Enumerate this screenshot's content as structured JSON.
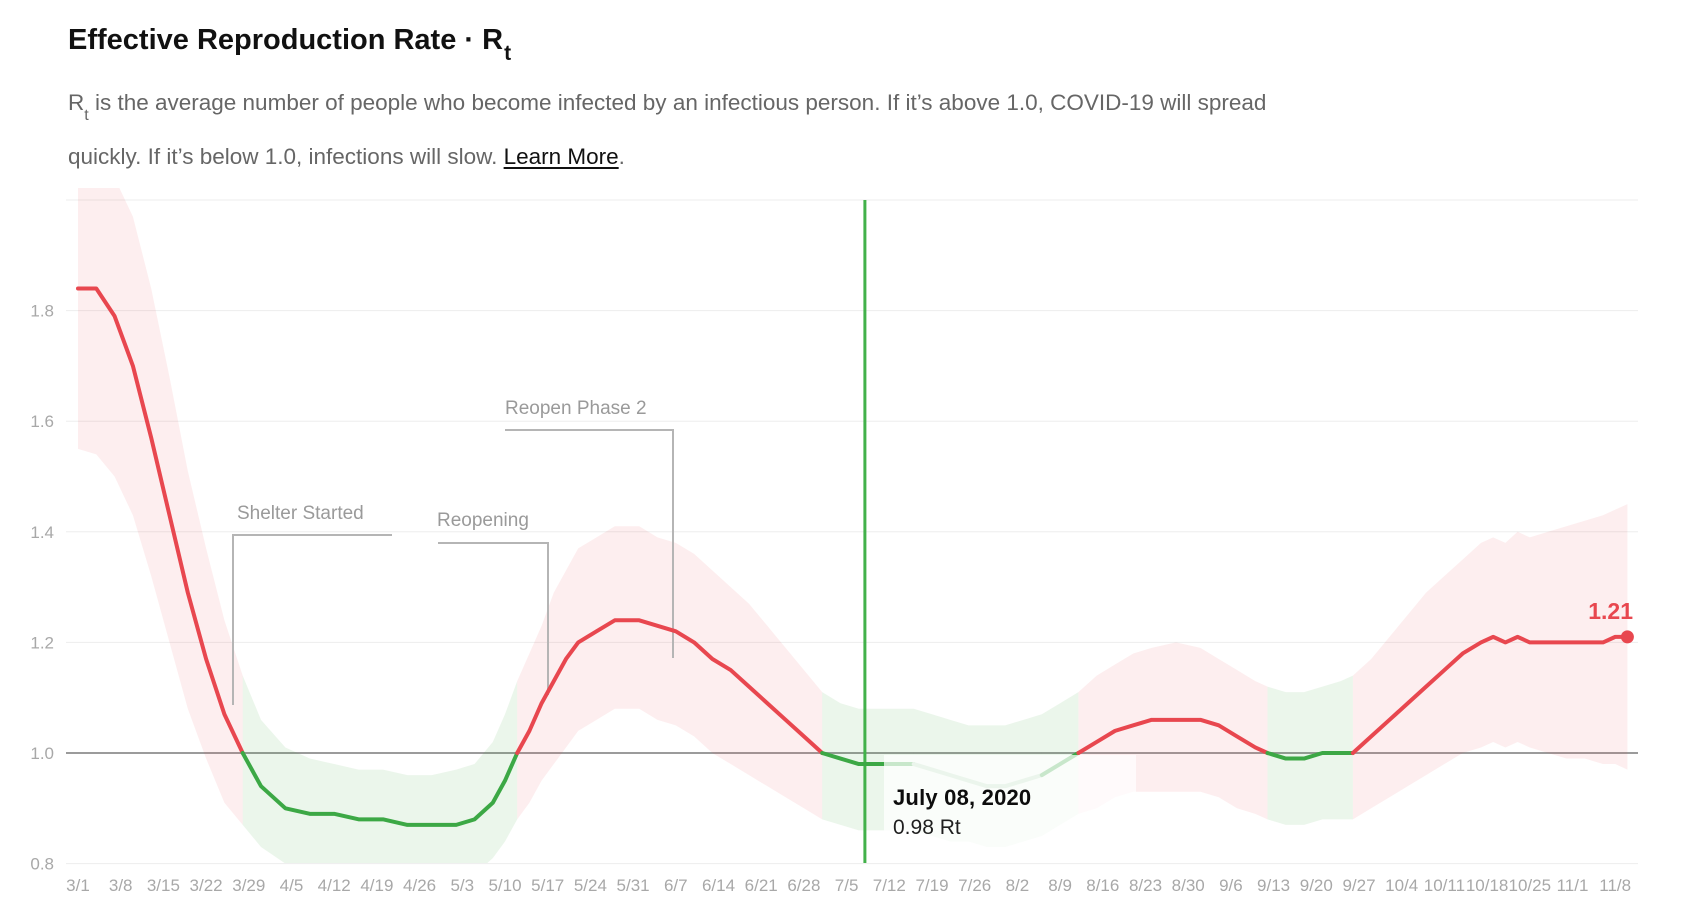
{
  "header": {
    "title_main": "Effective Reproduction Rate · R",
    "title_sub": "t",
    "subtitle_r": "R",
    "subtitle_r_sub": "t",
    "subtitle_line1": " is the average number of people who become infected by an infectious person. If it’s above 1.0, COVID-19 will spread",
    "subtitle_line2": "quickly. If it’s below 1.0, infections will slow. ",
    "learn_more": "Learn More",
    "subtitle_period": "."
  },
  "chart_data": {
    "type": "line",
    "title": "Effective Reproduction Rate · Rt",
    "ylabel": "Rt",
    "ylim": [
      0.8,
      2.02
    ],
    "baseline": 1.0,
    "grid": "horizontal",
    "y_ticks": [
      "0.8",
      "1.0",
      "1.2",
      "1.4",
      "1.6",
      "1.8"
    ],
    "y_tick_values": [
      0.8,
      1.0,
      1.2,
      1.4,
      1.6,
      1.8
    ],
    "x_tick_labels": [
      "3/1",
      "3/8",
      "3/15",
      "3/22",
      "3/29",
      "4/5",
      "4/12",
      "4/19",
      "4/26",
      "5/3",
      "5/10",
      "5/17",
      "5/24",
      "5/31",
      "6/7",
      "6/14",
      "6/21",
      "6/28",
      "7/5",
      "7/12",
      "7/19",
      "7/26",
      "8/2",
      "8/9",
      "8/16",
      "8/23",
      "8/30",
      "9/6",
      "9/13",
      "9/20",
      "9/27",
      "10/4",
      "10/11",
      "10/18",
      "10/25",
      "11/1",
      "11/8"
    ],
    "points_schema": [
      "day_offset_from_3/1",
      "rt",
      "ci_low",
      "ci_high"
    ],
    "points": [
      [
        0,
        1.84,
        1.55,
        2.06
      ],
      [
        3,
        1.84,
        1.54,
        2.06
      ],
      [
        6,
        1.79,
        1.5,
        2.04
      ],
      [
        9,
        1.7,
        1.43,
        1.97
      ],
      [
        12,
        1.57,
        1.32,
        1.84
      ],
      [
        15,
        1.43,
        1.2,
        1.68
      ],
      [
        18,
        1.29,
        1.08,
        1.51
      ],
      [
        21,
        1.17,
        0.99,
        1.37
      ],
      [
        24,
        1.07,
        0.91,
        1.24
      ],
      [
        27,
        1.0,
        0.87,
        1.14
      ],
      [
        30,
        0.94,
        0.83,
        1.06
      ],
      [
        34,
        0.9,
        0.8,
        1.01
      ],
      [
        38,
        0.89,
        0.79,
        0.99
      ],
      [
        42,
        0.89,
        0.78,
        0.98
      ],
      [
        46,
        0.88,
        0.78,
        0.97
      ],
      [
        50,
        0.88,
        0.77,
        0.97
      ],
      [
        54,
        0.87,
        0.77,
        0.96
      ],
      [
        58,
        0.87,
        0.77,
        0.96
      ],
      [
        62,
        0.87,
        0.77,
        0.97
      ],
      [
        65,
        0.88,
        0.78,
        0.98
      ],
      [
        68,
        0.91,
        0.81,
        1.02
      ],
      [
        70,
        0.95,
        0.84,
        1.07
      ],
      [
        72,
        1.0,
        0.88,
        1.13
      ],
      [
        74,
        1.04,
        0.91,
        1.18
      ],
      [
        76,
        1.09,
        0.95,
        1.23
      ],
      [
        78,
        1.13,
        0.98,
        1.29
      ],
      [
        80,
        1.17,
        1.01,
        1.33
      ],
      [
        82,
        1.2,
        1.04,
        1.37
      ],
      [
        85,
        1.22,
        1.06,
        1.39
      ],
      [
        88,
        1.24,
        1.08,
        1.41
      ],
      [
        92,
        1.24,
        1.08,
        1.41
      ],
      [
        95,
        1.23,
        1.06,
        1.39
      ],
      [
        98,
        1.22,
        1.05,
        1.38
      ],
      [
        101,
        1.2,
        1.03,
        1.36
      ],
      [
        104,
        1.17,
        1.0,
        1.33
      ],
      [
        107,
        1.15,
        0.98,
        1.3
      ],
      [
        110,
        1.12,
        0.96,
        1.27
      ],
      [
        113,
        1.09,
        0.94,
        1.23
      ],
      [
        116,
        1.06,
        0.92,
        1.19
      ],
      [
        119,
        1.03,
        0.9,
        1.15
      ],
      [
        122,
        1.0,
        0.88,
        1.11
      ],
      [
        125,
        0.99,
        0.87,
        1.09
      ],
      [
        128,
        0.98,
        0.86,
        1.08
      ],
      [
        131,
        0.98,
        0.86,
        1.08
      ],
      [
        134,
        0.98,
        0.86,
        1.08
      ],
      [
        137,
        0.98,
        0.86,
        1.08
      ],
      [
        140,
        0.97,
        0.85,
        1.07
      ],
      [
        143,
        0.96,
        0.84,
        1.06
      ],
      [
        146,
        0.95,
        0.84,
        1.05
      ],
      [
        149,
        0.94,
        0.83,
        1.05
      ],
      [
        152,
        0.94,
        0.83,
        1.05
      ],
      [
        155,
        0.95,
        0.84,
        1.06
      ],
      [
        158,
        0.96,
        0.85,
        1.07
      ],
      [
        161,
        0.98,
        0.87,
        1.09
      ],
      [
        164,
        1.0,
        0.89,
        1.11
      ],
      [
        167,
        1.02,
        0.9,
        1.14
      ],
      [
        170,
        1.04,
        0.92,
        1.16
      ],
      [
        173,
        1.05,
        0.93,
        1.18
      ],
      [
        176,
        1.06,
        0.93,
        1.19
      ],
      [
        180,
        1.06,
        0.93,
        1.2
      ],
      [
        184,
        1.06,
        0.93,
        1.19
      ],
      [
        187,
        1.05,
        0.92,
        1.17
      ],
      [
        190,
        1.03,
        0.9,
        1.15
      ],
      [
        193,
        1.01,
        0.89,
        1.13
      ],
      [
        195,
        1.0,
        0.88,
        1.12
      ],
      [
        198,
        0.99,
        0.87,
        1.11
      ],
      [
        201,
        0.99,
        0.87,
        1.11
      ],
      [
        204,
        1.0,
        0.88,
        1.12
      ],
      [
        207,
        1.0,
        0.88,
        1.13
      ],
      [
        209,
        1.0,
        0.88,
        1.14
      ],
      [
        212,
        1.03,
        0.9,
        1.17
      ],
      [
        215,
        1.06,
        0.92,
        1.21
      ],
      [
        218,
        1.09,
        0.94,
        1.25
      ],
      [
        221,
        1.12,
        0.96,
        1.29
      ],
      [
        224,
        1.15,
        0.98,
        1.32
      ],
      [
        227,
        1.18,
        1.0,
        1.35
      ],
      [
        230,
        1.2,
        1.01,
        1.38
      ],
      [
        232,
        1.21,
        1.02,
        1.39
      ],
      [
        234,
        1.2,
        1.01,
        1.38
      ],
      [
        236,
        1.21,
        1.02,
        1.4
      ],
      [
        238,
        1.2,
        1.01,
        1.39
      ],
      [
        241,
        1.2,
        1.0,
        1.4
      ],
      [
        244,
        1.2,
        0.99,
        1.41
      ],
      [
        247,
        1.2,
        0.99,
        1.42
      ],
      [
        250,
        1.2,
        0.98,
        1.43
      ],
      [
        252,
        1.21,
        0.98,
        1.44
      ],
      [
        254,
        1.21,
        0.97,
        1.45
      ]
    ],
    "segments": [
      {
        "from": 0,
        "to": 27,
        "color": "red"
      },
      {
        "from": 27,
        "to": 72,
        "color": "green"
      },
      {
        "from": 72,
        "to": 122,
        "color": "red"
      },
      {
        "from": 122,
        "to": 137,
        "color": "green"
      },
      {
        "from": 137,
        "to": 158,
        "color": "green",
        "muted": true
      },
      {
        "from": 158,
        "to": 164,
        "color": "green"
      },
      {
        "from": 164,
        "to": 195,
        "color": "red"
      },
      {
        "from": 195,
        "to": 209,
        "color": "green"
      },
      {
        "from": 209,
        "to": 254,
        "color": "red"
      }
    ],
    "annotations": [
      {
        "label": "Shelter Started"
      },
      {
        "label": "Reopening"
      },
      {
        "label": "Reopen Phase 2"
      }
    ],
    "hover": {
      "date_label": "July 08, 2020",
      "value_label": "0.98 Rt",
      "day_offset": 129,
      "rt": 0.98
    },
    "end_label": "1.21",
    "latest_rt": 1.21,
    "colors": {
      "above_1": "#e8474f",
      "below_1": "#3ca845",
      "hover_line": "#42b14a",
      "band_red": "rgba(232,71,79,0.09)",
      "band_green": "rgba(58,168,63,0.10)",
      "muted_line": "#b7dcb9",
      "baseline_gray": "#9b9b9b"
    }
  }
}
